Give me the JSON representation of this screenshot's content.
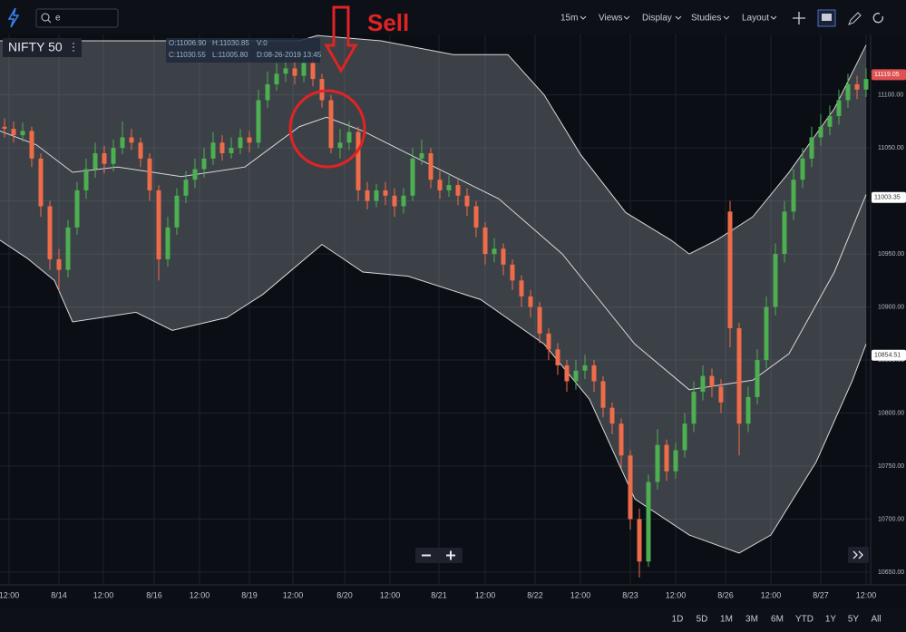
{
  "toolbar": {
    "search": "e",
    "interval": "15m",
    "menus": [
      "Views",
      "Display",
      "Studies",
      "Layout"
    ]
  },
  "symbol": "NIFTY 50",
  "ohlc_legend": {
    "open": "O:11006.90",
    "high": "H:11030.85",
    "volume": "V:0",
    "close": "C:11030.55",
    "low": "L:11005.80",
    "date": "D:08-26-2019 13:45"
  },
  "annotation": "Sell",
  "ranges": [
    "1D",
    "5D",
    "1M",
    "3M",
    "6M",
    "YTD",
    "1Y",
    "5Y",
    "All"
  ],
  "chart_data": {
    "type": "candlestick",
    "up_color": "#4caf50",
    "down_color": "#ef6c4a",
    "grid": true,
    "xlim": [
      -0.5,
      95.5
    ],
    "xticks": [
      {
        "value": 0.5,
        "label": "12:00"
      },
      {
        "value": 6.0,
        "label": "8/14"
      },
      {
        "value": 10.9,
        "label": "12:00"
      },
      {
        "value": 16.5,
        "label": "8/16"
      },
      {
        "value": 21.5,
        "label": "12:00"
      },
      {
        "value": 27.0,
        "label": "8/19"
      },
      {
        "value": 31.8,
        "label": "12:00"
      },
      {
        "value": 37.5,
        "label": "8/20"
      },
      {
        "value": 42.5,
        "label": "12:00"
      },
      {
        "value": 47.9,
        "label": "8/21"
      },
      {
        "value": 53.0,
        "label": "12:00"
      },
      {
        "value": 58.5,
        "label": "8/22"
      },
      {
        "value": 63.5,
        "label": "12:00"
      },
      {
        "value": 69.0,
        "label": "8/23"
      },
      {
        "value": 74.0,
        "label": "12:00"
      },
      {
        "value": 79.5,
        "label": "8/26"
      },
      {
        "value": 84.5,
        "label": "12:00"
      },
      {
        "value": 90.0,
        "label": "8/27"
      },
      {
        "value": 95.0,
        "label": "12:00"
      }
    ],
    "ylim": [
      10638,
      11157
    ],
    "yticks": [
      {
        "value": 10650,
        "label": "10650.00"
      },
      {
        "value": 10700,
        "label": "10700.00"
      },
      {
        "value": 10750,
        "label": "10750.00"
      },
      {
        "value": 10800,
        "label": "10800.00"
      },
      {
        "value": 10850,
        "label": "10850.00"
      },
      {
        "value": 10900,
        "label": "10900.00"
      },
      {
        "value": 10950,
        "label": "10950.00"
      },
      {
        "value": 11000,
        "label": "11000.00"
      },
      {
        "value": 11050,
        "label": "11050.00"
      },
      {
        "value": 11100,
        "label": "11100.00"
      }
    ],
    "candles": [
      [
        11070,
        11078,
        11060,
        11068
      ],
      [
        11068,
        11075,
        11055,
        11062
      ],
      [
        11062,
        11074,
        11056,
        11066
      ],
      [
        11066,
        11070,
        11032,
        11040
      ],
      [
        11040,
        11045,
        10985,
        10995
      ],
      [
        10995,
        11000,
        10935,
        10945
      ],
      [
        10945,
        10955,
        10915,
        10935
      ],
      [
        10935,
        10982,
        10928,
        10975
      ],
      [
        10975,
        11018,
        10968,
        11010
      ],
      [
        11010,
        11040,
        11002,
        11030
      ],
      [
        11030,
        11055,
        11022,
        11045
      ],
      [
        11045,
        11052,
        11026,
        11035
      ],
      [
        11035,
        11058,
        11028,
        11050
      ],
      [
        11050,
        11075,
        11044,
        11060
      ],
      [
        11060,
        11068,
        11048,
        11055
      ],
      [
        11055,
        11060,
        11032,
        11040
      ],
      [
        11040,
        11045,
        11000,
        11010
      ],
      [
        11010,
        11015,
        10925,
        10945
      ],
      [
        10945,
        10985,
        10938,
        10975
      ],
      [
        10975,
        11012,
        10968,
        11005
      ],
      [
        11005,
        11028,
        10998,
        11020
      ],
      [
        11020,
        11040,
        11012,
        11030
      ],
      [
        11030,
        11050,
        11022,
        11040
      ],
      [
        11040,
        11065,
        11034,
        11055
      ],
      [
        11055,
        11062,
        11038,
        11045
      ],
      [
        11045,
        11060,
        11040,
        11050
      ],
      [
        11050,
        11068,
        11044,
        11060
      ],
      [
        11060,
        11066,
        11046,
        11055
      ],
      [
        11055,
        11105,
        11050,
        11095
      ],
      [
        11095,
        11122,
        11088,
        11110
      ],
      [
        11110,
        11130,
        11104,
        11120
      ],
      [
        11120,
        11135,
        11112,
        11125
      ],
      [
        11125,
        11132,
        11110,
        11118
      ],
      [
        11118,
        11140,
        11112,
        11130
      ],
      [
        11130,
        11136,
        11108,
        11115
      ],
      [
        11115,
        11120,
        11088,
        11095
      ],
      [
        11095,
        11100,
        11045,
        11050
      ],
      [
        11050,
        11068,
        11040,
        11055
      ],
      [
        11055,
        11075,
        11048,
        11065
      ],
      [
        11065,
        11070,
        11000,
        11010
      ],
      [
        11010,
        11018,
        10992,
        11000
      ],
      [
        11000,
        11016,
        10994,
        11010
      ],
      [
        11010,
        11018,
        10996,
        11005
      ],
      [
        11005,
        11012,
        10985,
        10995
      ],
      [
        10995,
        11012,
        10988,
        11005
      ],
      [
        11005,
        11050,
        11000,
        11040
      ],
      [
        11040,
        11058,
        11034,
        11045
      ],
      [
        11045,
        11050,
        11012,
        11020
      ],
      [
        11020,
        11028,
        11002,
        11010
      ],
      [
        11010,
        11024,
        11004,
        11015
      ],
      [
        11015,
        11020,
        10996,
        11005
      ],
      [
        11005,
        11012,
        10986,
        10995
      ],
      [
        10995,
        11000,
        10966,
        10975
      ],
      [
        10975,
        10980,
        10940,
        10950
      ],
      [
        10950,
        10965,
        10942,
        10955
      ],
      [
        10955,
        10960,
        10930,
        10940
      ],
      [
        10940,
        10945,
        10916,
        10925
      ],
      [
        10925,
        10930,
        10900,
        10910
      ],
      [
        10910,
        10916,
        10890,
        10900
      ],
      [
        10900,
        10905,
        10866,
        10875
      ],
      [
        10875,
        10880,
        10850,
        10860
      ],
      [
        10860,
        10866,
        10836,
        10845
      ],
      [
        10845,
        10850,
        10820,
        10830
      ],
      [
        10830,
        10850,
        10822,
        10840
      ],
      [
        10840,
        10855,
        10832,
        10845
      ],
      [
        10845,
        10850,
        10820,
        10830
      ],
      [
        10830,
        10835,
        10796,
        10805
      ],
      [
        10805,
        10810,
        10780,
        10790
      ],
      [
        10790,
        10795,
        10748,
        10760
      ],
      [
        10760,
        10765,
        10690,
        10700
      ],
      [
        10700,
        10710,
        10645,
        10660
      ],
      [
        10660,
        10742,
        10655,
        10735
      ],
      [
        10735,
        10785,
        10728,
        10770
      ],
      [
        10770,
        10775,
        10736,
        10745
      ],
      [
        10745,
        10772,
        10738,
        10765
      ],
      [
        10765,
        10800,
        10758,
        10790
      ],
      [
        10790,
        10830,
        10782,
        10820
      ],
      [
        10820,
        10845,
        10812,
        10835
      ],
      [
        10835,
        10842,
        10815,
        10825
      ],
      [
        10825,
        10832,
        10800,
        10810
      ],
      [
        10990,
        11000,
        10862,
        10880
      ],
      [
        10880,
        10885,
        10760,
        10790
      ],
      [
        10790,
        10825,
        10782,
        10815
      ],
      [
        10815,
        10860,
        10808,
        10850
      ],
      [
        10850,
        10910,
        10842,
        10900
      ],
      [
        10900,
        10960,
        10892,
        10950
      ],
      [
        10950,
        11000,
        10942,
        10990
      ],
      [
        10990,
        11030,
        10982,
        11020
      ],
      [
        11020,
        11050,
        11012,
        11040
      ],
      [
        11040,
        11070,
        11032,
        11060
      ],
      [
        11060,
        11082,
        11052,
        11070
      ],
      [
        11070,
        11090,
        11062,
        11080
      ],
      [
        11080,
        11105,
        11072,
        11095
      ],
      [
        11095,
        11120,
        11088,
        11110
      ],
      [
        11110,
        11118,
        11096,
        11105
      ],
      [
        11105,
        11125,
        11098,
        11115
      ]
    ],
    "series": [
      {
        "color": "#d8d8d8",
        "x": [
          -0.5,
          32.5,
          34.5,
          41.5,
          49.5,
          55.5,
          59.5,
          63.5,
          68.5,
          73.5,
          75.5,
          78.5,
          82.5,
          86.5,
          91.5,
          95
        ],
        "values": [
          11151,
          11151,
          11156,
          11151,
          11138,
          11138,
          11100,
          11044,
          10989,
          10963,
          10950,
          10963,
          10985,
          11027,
          11087,
          11147
        ]
      },
      {
        "color": "#d8d8d8",
        "x": [
          -0.5,
          3.5,
          7.5,
          12.5,
          19.5,
          26.5,
          32.5,
          35.5,
          39.5,
          46.5,
          54.5,
          61.5,
          69.5,
          75.5,
          82.5,
          86.5,
          91.5,
          95
        ],
        "values": [
          11066,
          11053,
          11027,
          11032,
          11023,
          11032,
          11070,
          11079,
          11066,
          11036,
          11002,
          10950,
          10865,
          10822,
          10831,
          10856,
          10933,
          11006
        ]
      },
      {
        "color": "#d8d8d8",
        "x": [
          -0.5,
          2.5,
          5.5,
          7.5,
          14.5,
          18.5,
          24.5,
          28.5,
          35,
          39.5,
          44.5,
          52.5,
          59.5,
          64.5,
          69.5,
          75.5,
          81,
          84.5,
          89.5,
          93.5,
          95
        ],
        "values": [
          10963,
          10946,
          10925,
          10886,
          10895,
          10878,
          10890,
          10912,
          10959,
          10933,
          10929,
          10907,
          10865,
          10813,
          10719,
          10685,
          10668,
          10685,
          10754,
          10831,
          10865
        ]
      }
    ],
    "price_tags": [
      11119.05,
      11003.35,
      10854.51
    ],
    "tag_colors": [
      "#e05252",
      "#ffffff",
      "#ffffff"
    ]
  }
}
